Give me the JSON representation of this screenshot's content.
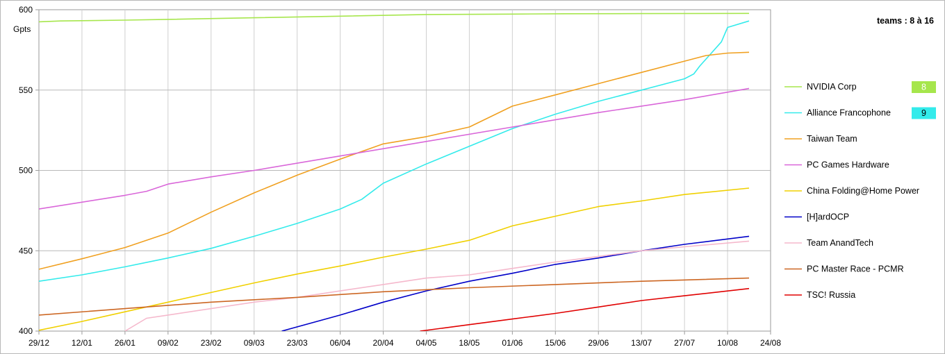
{
  "chart_data": {
    "type": "line",
    "title": "teams : 8 à 16",
    "ylabel": "Gpts",
    "ylim": [
      400,
      600
    ],
    "yticks": [
      "400",
      "450",
      "500",
      "550",
      "600"
    ],
    "xlim": [
      "2024-12-29",
      "2025-08-24"
    ],
    "xticks": [
      "29/12",
      "12/01",
      "26/01",
      "09/02",
      "23/02",
      "09/03",
      "23/03",
      "06/04",
      "20/04",
      "04/05",
      "18/05",
      "01/06",
      "15/06",
      "29/06",
      "13/07",
      "27/07",
      "10/08",
      "24/08"
    ],
    "grid": true,
    "legend_position": "right",
    "series": [
      {
        "name": "NVIDIA Corp",
        "color": "#a6e64c",
        "rank": "8",
        "points": [
          [
            "2024-12-29",
            592.5
          ],
          [
            "2025-01-05",
            593
          ],
          [
            "2025-01-26",
            593.5
          ],
          [
            "2025-02-09",
            594
          ],
          [
            "2025-03-09",
            595
          ],
          [
            "2025-04-06",
            596
          ],
          [
            "2025-05-04",
            597
          ],
          [
            "2025-06-01",
            597.3
          ],
          [
            "2025-06-18",
            597.5
          ],
          [
            "2025-07-13",
            597.6
          ],
          [
            "2025-08-17",
            597.7
          ]
        ]
      },
      {
        "name": "Alliance Francophone",
        "color": "#33ebeb",
        "rank": "9",
        "points": [
          [
            "2024-12-29",
            431
          ],
          [
            "2025-01-12",
            435
          ],
          [
            "2025-01-26",
            440
          ],
          [
            "2025-02-09",
            445.5
          ],
          [
            "2025-02-23",
            451.5
          ],
          [
            "2025-03-09",
            459
          ],
          [
            "2025-03-23",
            467
          ],
          [
            "2025-04-06",
            476
          ],
          [
            "2025-04-13",
            482
          ],
          [
            "2025-04-20",
            492
          ],
          [
            "2025-05-04",
            504
          ],
          [
            "2025-05-18",
            515
          ],
          [
            "2025-06-01",
            526
          ],
          [
            "2025-06-15",
            535
          ],
          [
            "2025-06-29",
            543
          ],
          [
            "2025-07-13",
            550
          ],
          [
            "2025-07-27",
            557
          ],
          [
            "2025-07-30",
            560
          ],
          [
            "2025-08-01",
            565
          ],
          [
            "2025-08-08",
            580
          ],
          [
            "2025-08-10",
            589
          ],
          [
            "2025-08-17",
            593
          ]
        ]
      },
      {
        "name": "Taiwan Team",
        "color": "#f0a020",
        "points": [
          [
            "2024-12-29",
            438.5
          ],
          [
            "2025-01-12",
            445
          ],
          [
            "2025-01-26",
            452
          ],
          [
            "2025-02-09",
            461
          ],
          [
            "2025-02-23",
            474
          ],
          [
            "2025-03-09",
            486
          ],
          [
            "2025-03-23",
            497
          ],
          [
            "2025-04-06",
            507
          ],
          [
            "2025-04-20",
            516.5
          ],
          [
            "2025-05-04",
            521
          ],
          [
            "2025-05-18",
            527
          ],
          [
            "2025-06-01",
            540
          ],
          [
            "2025-06-15",
            547
          ],
          [
            "2025-06-29",
            554
          ],
          [
            "2025-07-13",
            561
          ],
          [
            "2025-07-27",
            568
          ],
          [
            "2025-08-03",
            571.5
          ],
          [
            "2025-08-10",
            573
          ],
          [
            "2025-08-17",
            573.5
          ]
        ]
      },
      {
        "name": "PC Games Hardware",
        "color": "#d966d9",
        "points": [
          [
            "2024-12-29",
            476
          ],
          [
            "2025-01-26",
            484.5
          ],
          [
            "2025-02-02",
            487
          ],
          [
            "2025-02-09",
            491.5
          ],
          [
            "2025-02-23",
            496
          ],
          [
            "2025-03-09",
            500
          ],
          [
            "2025-04-06",
            509
          ],
          [
            "2025-05-04",
            518
          ],
          [
            "2025-06-01",
            527
          ],
          [
            "2025-06-29",
            536
          ],
          [
            "2025-07-27",
            544
          ],
          [
            "2025-08-17",
            551
          ]
        ]
      },
      {
        "name": "China Folding@Home Power",
        "color": "#f0d000",
        "points": [
          [
            "2024-12-29",
            400.5
          ],
          [
            "2025-01-12",
            406
          ],
          [
            "2025-01-26",
            412
          ],
          [
            "2025-02-09",
            418
          ],
          [
            "2025-02-23",
            424
          ],
          [
            "2025-03-09",
            430
          ],
          [
            "2025-03-23",
            435.5
          ],
          [
            "2025-04-06",
            440.5
          ],
          [
            "2025-04-20",
            446
          ],
          [
            "2025-05-04",
            451
          ],
          [
            "2025-05-18",
            456.5
          ],
          [
            "2025-06-01",
            465.5
          ],
          [
            "2025-06-15",
            471.5
          ],
          [
            "2025-06-29",
            477.5
          ],
          [
            "2025-07-13",
            481
          ],
          [
            "2025-07-27",
            485
          ],
          [
            "2025-08-17",
            489
          ]
        ]
      },
      {
        "name": "[H]ardOCP",
        "color": "#0000c8",
        "points": [
          [
            "2025-03-18",
            400
          ],
          [
            "2025-04-06",
            410
          ],
          [
            "2025-04-20",
            418
          ],
          [
            "2025-05-04",
            425
          ],
          [
            "2025-05-18",
            431
          ],
          [
            "2025-06-01",
            436
          ],
          [
            "2025-06-15",
            441.5
          ],
          [
            "2025-06-29",
            445.5
          ],
          [
            "2025-07-13",
            450
          ],
          [
            "2025-07-27",
            454
          ],
          [
            "2025-08-17",
            459
          ]
        ]
      },
      {
        "name": "Team AnandTech",
        "color": "#f5b8cc",
        "points": [
          [
            "2025-01-26",
            400
          ],
          [
            "2025-02-02",
            408
          ],
          [
            "2025-02-09",
            410
          ],
          [
            "2025-02-23",
            414
          ],
          [
            "2025-03-09",
            418
          ],
          [
            "2025-03-23",
            421
          ],
          [
            "2025-04-06",
            425
          ],
          [
            "2025-04-20",
            429
          ],
          [
            "2025-05-04",
            433
          ],
          [
            "2025-05-18",
            435
          ],
          [
            "2025-06-01",
            439
          ],
          [
            "2025-06-15",
            443
          ],
          [
            "2025-06-29",
            446.5
          ],
          [
            "2025-07-13",
            450
          ],
          [
            "2025-07-27",
            452.5
          ],
          [
            "2025-08-17",
            456
          ]
        ]
      },
      {
        "name": "PC Master Race - PCMR",
        "color": "#cc6622",
        "points": [
          [
            "2024-12-29",
            410
          ],
          [
            "2025-01-26",
            414
          ],
          [
            "2025-02-23",
            418
          ],
          [
            "2025-03-23",
            421
          ],
          [
            "2025-04-20",
            424.5
          ],
          [
            "2025-05-18",
            427
          ],
          [
            "2025-06-15",
            429
          ],
          [
            "2025-07-13",
            431
          ],
          [
            "2025-08-17",
            433
          ]
        ]
      },
      {
        "name": "TSC! Russia",
        "color": "#e00000",
        "points": [
          [
            "2025-05-02",
            400
          ],
          [
            "2025-05-18",
            404
          ],
          [
            "2025-06-01",
            407.5
          ],
          [
            "2025-06-15",
            411
          ],
          [
            "2025-06-29",
            415
          ],
          [
            "2025-07-13",
            419
          ],
          [
            "2025-07-27",
            422
          ],
          [
            "2025-08-17",
            426.5
          ]
        ]
      }
    ]
  }
}
